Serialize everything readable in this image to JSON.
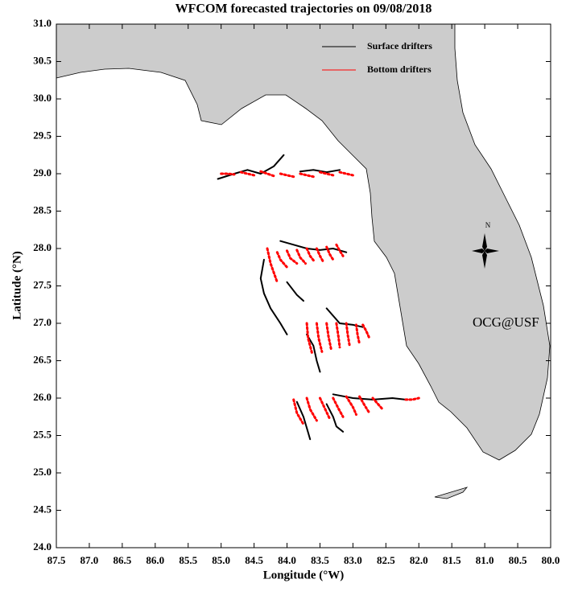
{
  "chart_data": {
    "type": "trajectory-map",
    "title": "WFCOM forecasted trajectories on 09/08/2018",
    "x_label": "Longitude (°W)",
    "y_label": "Latitude (°N)",
    "xlim": [
      87.5,
      80
    ],
    "ylim": [
      24,
      31
    ],
    "xticks": [
      87.5,
      {
        "value": 87,
        "label": "87.0"
      },
      86.5,
      {
        "value": 86,
        "label": "86.0"
      },
      85.5,
      {
        "value": 85,
        "label": "85.0"
      },
      84.5,
      {
        "value": 84,
        "label": "84.0"
      },
      83.5,
      {
        "value": 83,
        "label": "83.0"
      },
      82.5,
      {
        "value": 82,
        "label": "82.0"
      },
      81.5,
      {
        "value": 81,
        "label": "81.0"
      },
      80.5,
      {
        "value": 80,
        "label": "80.0"
      }
    ],
    "yticks": [
      {
        "value": 24,
        "label": "24.0"
      },
      24.5,
      {
        "value": 25,
        "label": "25.0"
      },
      25.5,
      {
        "value": 26,
        "label": "26.0"
      },
      26.5,
      {
        "value": 27,
        "label": "27.0"
      },
      27.5,
      {
        "value": 28,
        "label": "28.0"
      },
      28.5,
      {
        "value": 29,
        "label": "29.0"
      },
      29.5,
      {
        "value": 30,
        "label": "30.0"
      },
      30.5,
      {
        "value": 31,
        "label": "31.0"
      }
    ],
    "legend": "upper right",
    "series": [
      {
        "name": "Surface drifters",
        "color": "#000000",
        "x": [
          85.05,
          84.8,
          84.6,
          84.4,
          84.2,
          84.05,
          null,
          83.8,
          83.6,
          83.4,
          83.2,
          null,
          84.35,
          84.4,
          84.35,
          84.25,
          84.1,
          84.0,
          null,
          84.1,
          83.9,
          83.7,
          83.5,
          83.3,
          83.1,
          null,
          84.0,
          83.85,
          83.75,
          null,
          83.4,
          83.2,
          83.0,
          82.85,
          null,
          83.7,
          83.6,
          83.55,
          83.5,
          null,
          83.85,
          83.75,
          83.7,
          83.65,
          null,
          83.4,
          83.3,
          83.25,
          83.15,
          null,
          83.3,
          83.0,
          82.7,
          82.4,
          82.2
        ],
        "y": [
          28.93,
          29.0,
          29.05,
          29.0,
          29.1,
          29.25,
          null,
          29.03,
          29.05,
          29.02,
          29.05,
          null,
          27.85,
          27.6,
          27.4,
          27.2,
          27.0,
          26.85,
          null,
          28.1,
          28.05,
          28.0,
          27.98,
          28.0,
          27.95,
          null,
          27.55,
          27.38,
          27.3,
          null,
          27.2,
          27.0,
          26.98,
          26.95,
          null,
          26.85,
          26.7,
          26.5,
          26.35,
          null,
          25.95,
          25.75,
          25.6,
          25.45,
          null,
          25.92,
          25.75,
          25.62,
          25.55,
          null,
          26.05,
          26.0,
          25.98,
          26.0,
          25.98
        ]
      },
      {
        "name": "Bottom drifters",
        "color": "#ff0000",
        "x": [
          85.0,
          84.9,
          84.8,
          null,
          84.7,
          84.6,
          84.5,
          null,
          84.4,
          84.3,
          84.2,
          null,
          84.1,
          84.0,
          83.9,
          null,
          83.8,
          83.7,
          83.6,
          null,
          83.5,
          83.4,
          83.3,
          null,
          83.2,
          83.1,
          83.0,
          null,
          84.3,
          84.25,
          84.15,
          null,
          84.15,
          84.1,
          84.0,
          null,
          84.0,
          83.95,
          83.85,
          null,
          83.85,
          83.8,
          83.72,
          null,
          83.7,
          83.65,
          83.58,
          null,
          83.55,
          83.5,
          83.45,
          null,
          83.4,
          83.35,
          83.3,
          null,
          83.25,
          83.2,
          83.15,
          null,
          83.7,
          83.68,
          83.62,
          null,
          83.55,
          83.52,
          83.47,
          null,
          83.4,
          83.37,
          83.33,
          null,
          83.25,
          83.22,
          83.2,
          null,
          83.1,
          83.08,
          83.05,
          null,
          82.95,
          82.93,
          82.9,
          null,
          82.85,
          82.8,
          82.75,
          null,
          83.9,
          83.85,
          83.75,
          null,
          83.7,
          83.65,
          83.55,
          null,
          83.5,
          83.42,
          83.35,
          null,
          83.3,
          83.22,
          83.15,
          null,
          83.1,
          83.0,
          82.95,
          null,
          82.9,
          82.82,
          82.75,
          null,
          82.7,
          82.62,
          82.55,
          null,
          82.2,
          82.1,
          82.0
        ],
        "y": [
          29.0,
          29.0,
          28.99,
          null,
          29.02,
          29.0,
          28.98,
          null,
          29.03,
          29.0,
          28.97,
          null,
          29.0,
          28.98,
          28.96,
          null,
          29.0,
          28.98,
          28.96,
          null,
          29.02,
          29.0,
          28.98,
          null,
          29.02,
          29.0,
          28.98,
          null,
          28.0,
          27.8,
          27.55,
          null,
          27.95,
          27.85,
          27.75,
          null,
          27.97,
          27.87,
          27.8,
          null,
          27.98,
          27.88,
          27.8,
          null,
          28.0,
          27.9,
          27.82,
          null,
          28.0,
          27.9,
          27.82,
          null,
          28.02,
          27.92,
          27.85,
          null,
          28.05,
          27.97,
          27.9,
          null,
          27.0,
          26.8,
          26.6,
          null,
          27.0,
          26.8,
          26.62,
          null,
          27.0,
          26.82,
          26.65,
          null,
          27.0,
          26.82,
          26.68,
          null,
          27.0,
          26.85,
          26.7,
          null,
          26.98,
          26.85,
          26.72,
          null,
          26.98,
          26.9,
          26.8,
          null,
          25.98,
          25.8,
          25.65,
          null,
          26.0,
          25.85,
          25.7,
          null,
          26.0,
          25.85,
          25.72,
          null,
          26.0,
          25.86,
          25.75,
          null,
          26.02,
          25.88,
          25.78,
          null,
          26.02,
          25.9,
          25.8,
          null,
          26.0,
          25.92,
          25.85,
          null,
          25.98,
          25.98,
          26.0
        ]
      }
    ],
    "annotations": [
      {
        "text": "OCG@USF",
        "color": "#ff0000"
      },
      {
        "text": "N",
        "color": "#000000"
      }
    ]
  }
}
